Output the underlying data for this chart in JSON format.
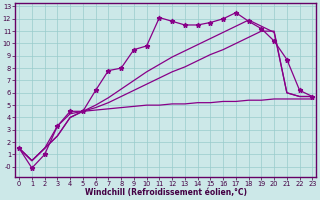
{
  "xlabel": "Windchill (Refroidissement éolien,°C)",
  "xlim": [
    -0.3,
    23.3
  ],
  "ylim": [
    -0.8,
    13.3
  ],
  "xticks": [
    0,
    1,
    2,
    3,
    4,
    5,
    6,
    7,
    8,
    9,
    10,
    11,
    12,
    13,
    14,
    15,
    16,
    17,
    18,
    19,
    20,
    21,
    22,
    23
  ],
  "yticks": [
    0,
    1,
    2,
    3,
    4,
    5,
    6,
    7,
    8,
    9,
    10,
    11,
    12,
    13
  ],
  "ytick_labels": [
    "-0",
    "1",
    "2",
    "3",
    "4",
    "5",
    "6",
    "7",
    "8",
    "9",
    "10",
    "11",
    "12",
    "13"
  ],
  "bg_color": "#cce8e8",
  "grid_color": "#99cccc",
  "line_color": "#880088",
  "line1_markers": true,
  "line1": [
    1.5,
    -0.1,
    1.0,
    3.3,
    4.5,
    4.5,
    6.2,
    7.8,
    8.0,
    9.5,
    9.8,
    12.1,
    11.8,
    11.5,
    11.5,
    11.7,
    12.0,
    12.5,
    11.8,
    11.2,
    10.2,
    8.7,
    6.2,
    5.7
  ],
  "line2": [
    1.5,
    0.5,
    1.5,
    3.3,
    4.3,
    4.5,
    4.6,
    4.7,
    4.8,
    4.9,
    5.0,
    5.0,
    5.1,
    5.1,
    5.2,
    5.2,
    5.3,
    5.3,
    5.4,
    5.4,
    5.5,
    5.5,
    5.5,
    5.5
  ],
  "line3": [
    1.5,
    0.5,
    1.5,
    2.5,
    4.0,
    4.5,
    4.8,
    5.2,
    5.7,
    6.2,
    6.7,
    7.2,
    7.7,
    8.1,
    8.6,
    9.1,
    9.5,
    10.0,
    10.5,
    11.0,
    11.0,
    6.0,
    5.7,
    5.7
  ],
  "line4": [
    1.5,
    0.5,
    1.5,
    2.5,
    4.0,
    4.5,
    5.0,
    5.6,
    6.3,
    7.0,
    7.7,
    8.3,
    8.9,
    9.4,
    9.9,
    10.4,
    10.9,
    11.4,
    11.9,
    11.4,
    10.9,
    6.0,
    5.7,
    5.7
  ]
}
